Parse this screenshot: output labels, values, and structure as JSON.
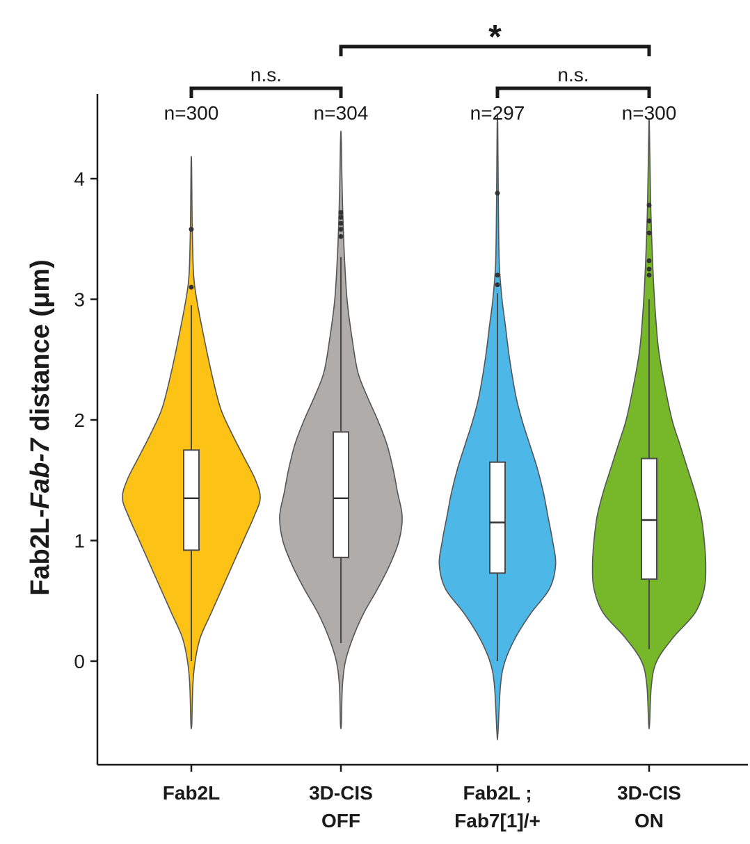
{
  "chart_data": {
    "type": "violin",
    "ylabel": {
      "prefix": "Fab2L-",
      "italic": "Fab-7",
      "suffix": " distance (μm)"
    },
    "yticks": [
      "0",
      "1",
      "2",
      "3",
      "4"
    ],
    "ylim": [
      -0.7,
      4.7
    ],
    "grid": false,
    "legend": "none",
    "groups": [
      {
        "label_lines": [
          "Fab2L"
        ],
        "n_label": "n=300",
        "color": "#FCC216",
        "violin_range": [
          -0.52,
          4.12
        ],
        "violin_profile": [
          [
            -0.52,
            0.003
          ],
          [
            -0.2,
            0.01
          ],
          [
            0.0,
            0.025
          ],
          [
            0.2,
            0.06
          ],
          [
            0.4,
            0.13
          ],
          [
            0.6,
            0.2
          ],
          [
            0.8,
            0.27
          ],
          [
            1.0,
            0.34
          ],
          [
            1.2,
            0.41
          ],
          [
            1.35,
            0.45
          ],
          [
            1.5,
            0.42
          ],
          [
            1.7,
            0.34
          ],
          [
            1.9,
            0.26
          ],
          [
            2.1,
            0.19
          ],
          [
            2.4,
            0.13
          ],
          [
            2.7,
            0.08
          ],
          [
            3.0,
            0.035
          ],
          [
            3.2,
            0.015
          ],
          [
            3.6,
            0.006
          ],
          [
            4.12,
            0.002
          ]
        ],
        "box": {
          "q1": 0.92,
          "median": 1.35,
          "q3": 1.75,
          "whisker_low": 0.0,
          "whisker_high": 2.95
        },
        "outliers": [
          3.1,
          3.58
        ]
      },
      {
        "label_lines": [
          "3D-CIS",
          "OFF"
        ],
        "n_label": "n=304",
        "color": "#B0ACAA",
        "violin_range": [
          -0.52,
          4.35
        ],
        "violin_profile": [
          [
            -0.52,
            0.003
          ],
          [
            -0.2,
            0.01
          ],
          [
            0.0,
            0.03
          ],
          [
            0.2,
            0.08
          ],
          [
            0.4,
            0.15
          ],
          [
            0.6,
            0.24
          ],
          [
            0.8,
            0.32
          ],
          [
            1.0,
            0.38
          ],
          [
            1.2,
            0.4
          ],
          [
            1.4,
            0.37
          ],
          [
            1.6,
            0.34
          ],
          [
            1.8,
            0.3
          ],
          [
            2.0,
            0.24
          ],
          [
            2.2,
            0.17
          ],
          [
            2.4,
            0.11
          ],
          [
            2.7,
            0.07
          ],
          [
            3.0,
            0.04
          ],
          [
            3.3,
            0.025
          ],
          [
            3.6,
            0.015
          ],
          [
            4.0,
            0.007
          ],
          [
            4.35,
            0.002
          ]
        ],
        "box": {
          "q1": 0.86,
          "median": 1.35,
          "q3": 1.9,
          "whisker_low": 0.15,
          "whisker_high": 3.35
        },
        "outliers": [
          3.52,
          3.58,
          3.63,
          3.68,
          3.72
        ]
      },
      {
        "label_lines": [
          "Fab2L ;",
          "Fab7[1]/+"
        ],
        "n_label": "n=297",
        "color": "#4DB8E8",
        "violin_range": [
          -0.6,
          4.45
        ],
        "violin_profile": [
          [
            -0.6,
            0.003
          ],
          [
            -0.2,
            0.02
          ],
          [
            0.0,
            0.05
          ],
          [
            0.2,
            0.12
          ],
          [
            0.4,
            0.22
          ],
          [
            0.6,
            0.34
          ],
          [
            0.8,
            0.38
          ],
          [
            1.0,
            0.36
          ],
          [
            1.2,
            0.33
          ],
          [
            1.4,
            0.3
          ],
          [
            1.6,
            0.26
          ],
          [
            1.8,
            0.21
          ],
          [
            2.0,
            0.16
          ],
          [
            2.2,
            0.12
          ],
          [
            2.5,
            0.08
          ],
          [
            2.8,
            0.05
          ],
          [
            3.0,
            0.03
          ],
          [
            3.3,
            0.012
          ],
          [
            3.8,
            0.006
          ],
          [
            4.45,
            0.002
          ]
        ],
        "box": {
          "q1": 0.73,
          "median": 1.15,
          "q3": 1.65,
          "whisker_low": 0.0,
          "whisker_high": 3.05
        },
        "outliers": [
          3.12,
          3.2,
          3.88
        ]
      },
      {
        "label_lines": [
          "3D-CIS",
          "ON"
        ],
        "n_label": "n=300",
        "color": "#76B82A",
        "violin_range": [
          -0.52,
          4.42
        ],
        "violin_profile": [
          [
            -0.52,
            0.003
          ],
          [
            -0.2,
            0.015
          ],
          [
            0.0,
            0.05
          ],
          [
            0.2,
            0.16
          ],
          [
            0.4,
            0.3
          ],
          [
            0.6,
            0.36
          ],
          [
            0.8,
            0.37
          ],
          [
            1.0,
            0.36
          ],
          [
            1.2,
            0.34
          ],
          [
            1.4,
            0.3
          ],
          [
            1.6,
            0.25
          ],
          [
            1.8,
            0.2
          ],
          [
            2.0,
            0.15
          ],
          [
            2.3,
            0.1
          ],
          [
            2.6,
            0.06
          ],
          [
            3.0,
            0.035
          ],
          [
            3.4,
            0.02
          ],
          [
            3.8,
            0.01
          ],
          [
            4.42,
            0.002
          ]
        ],
        "box": {
          "q1": 0.68,
          "median": 1.17,
          "q3": 1.68,
          "whisker_low": 0.1,
          "whisker_high": 3.0
        },
        "outliers": [
          3.2,
          3.25,
          3.32,
          3.55,
          3.65,
          3.78
        ]
      }
    ],
    "significance": [
      {
        "from": 0,
        "to": 1,
        "label": "n.s.",
        "level": 1
      },
      {
        "from": 2,
        "to": 3,
        "label": "n.s.",
        "level": 1
      },
      {
        "from": 1,
        "to": 3,
        "label": "*",
        "level": 2
      }
    ]
  }
}
